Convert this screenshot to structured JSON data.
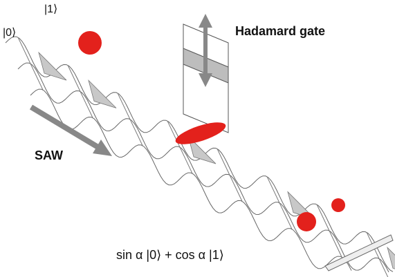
{
  "labels": {
    "ket0": "|0⟩",
    "ket1": "|1⟩"
  },
  "gate_label": "Hadamard gate",
  "saw_label": "SAW",
  "state_label": "sin α |0⟩ + cos α |1⟩"
}
